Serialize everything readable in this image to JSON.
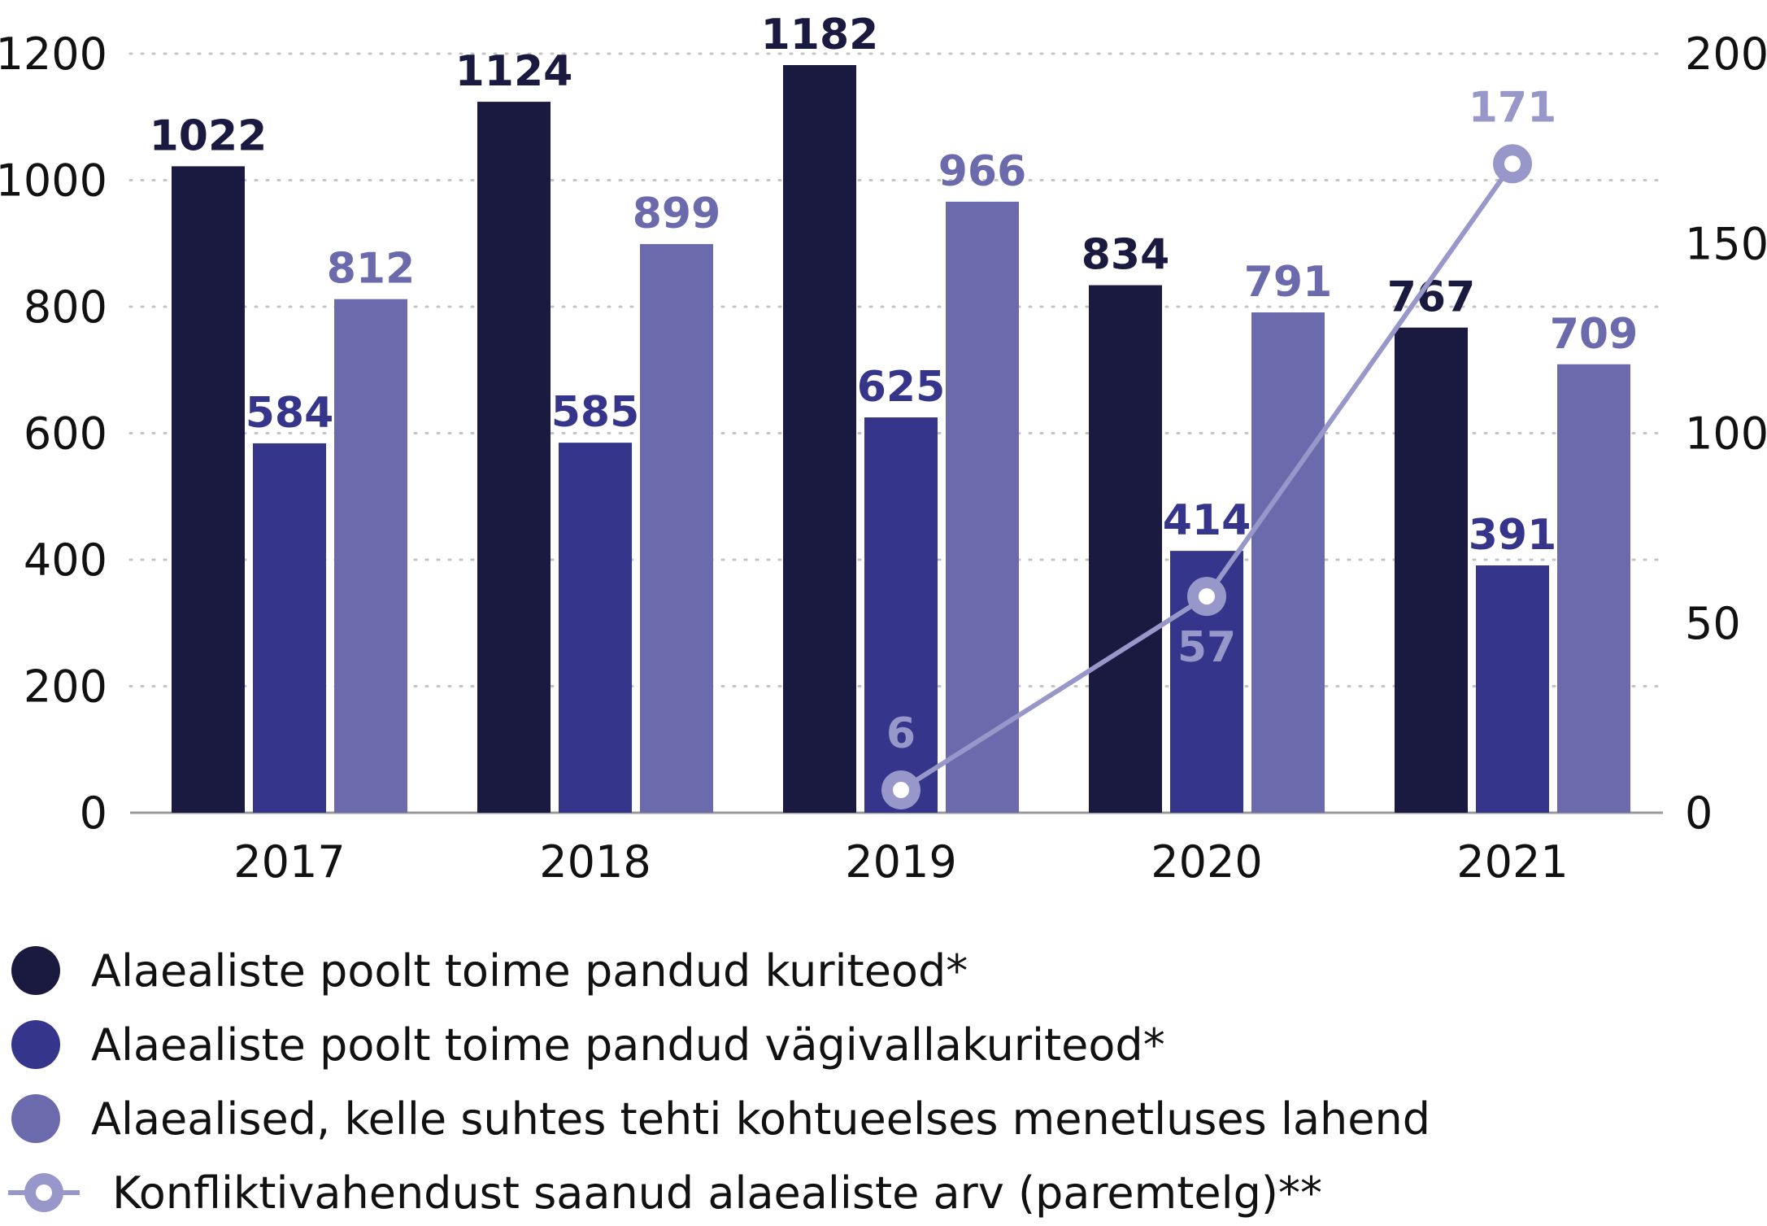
{
  "chart_data": {
    "type": "bar",
    "categories": [
      "2017",
      "2018",
      "2019",
      "2020",
      "2021"
    ],
    "y_left": {
      "min": 0,
      "max": 1200,
      "ticks": [
        0,
        200,
        400,
        600,
        800,
        1000,
        1200
      ]
    },
    "y_right": {
      "min": 0,
      "max": 200,
      "ticks": [
        0,
        50,
        100,
        150,
        200
      ]
    },
    "grid": true,
    "legend_position": "bottom",
    "series": [
      {
        "name": "Alaealiste poolt toime pandud kuriteod*",
        "type": "bar",
        "axis": "left",
        "color": "#1a1a40",
        "values": [
          1022,
          1124,
          1182,
          834,
          767
        ],
        "labels": [
          "1022",
          "1124",
          "1182",
          "834",
          "767"
        ]
      },
      {
        "name": "Alaealiste poolt toime pandud vägivallakuriteod*",
        "type": "bar",
        "axis": "left",
        "color": "#36358c",
        "values": [
          584,
          585,
          625,
          414,
          391
        ],
        "labels": [
          "584",
          "585",
          "625",
          "414",
          "391"
        ]
      },
      {
        "name": "Alaealised, kelle suhtes tehti kohtueelses menetluses lahend",
        "type": "bar",
        "axis": "left",
        "color": "#6b6aad",
        "values": [
          812,
          899,
          966,
          791,
          709
        ],
        "labels": [
          "812",
          "899",
          "966",
          "791",
          "709"
        ]
      },
      {
        "name": "Konfliktivahendust saanud alaealiste arv (paremtelg)**",
        "type": "line",
        "axis": "right",
        "color": "#9897c9",
        "values": [
          null,
          null,
          6,
          57,
          171
        ],
        "labels": [
          "",
          "",
          "6",
          "57",
          "171"
        ]
      }
    ]
  }
}
